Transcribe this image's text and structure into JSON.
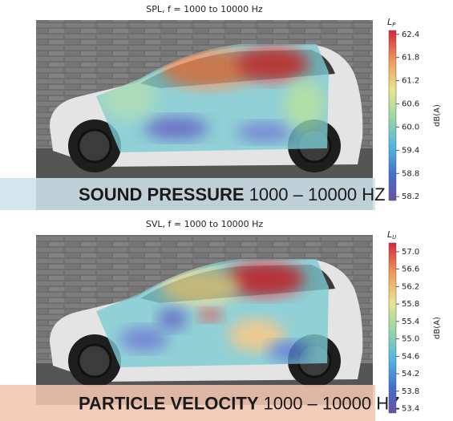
{
  "chart_data": [
    {
      "type": "heatmap",
      "title": "SPL, f = 1000 to 10000 Hz",
      "colorbar": {
        "symbol": "L",
        "subscript": "P",
        "label": "dB(A)",
        "lim": [
          58.1,
          62.5
        ],
        "ticks": [
          62.4,
          61.8,
          61.2,
          60.6,
          {
            "value": 60,
            "label": "60.0"
          },
          59.4,
          58.8,
          58.2
        ]
      },
      "banner_bold": "SOUND PRESSURE",
      "banner_rest": "1000 – 10000 HZ"
    },
    {
      "type": "heatmap",
      "title": "SVL, f = 1000 to 10000 Hz",
      "colorbar": {
        "symbol": "L",
        "subscript": "U",
        "label": "dB(A)",
        "lim": [
          53.3,
          57.2
        ],
        "ticks": [
          {
            "value": 57,
            "label": "57.0"
          },
          56.6,
          56.2,
          55.8,
          55.4,
          {
            "value": 55,
            "label": "55.0"
          },
          54.6,
          54.2,
          53.8,
          53.4
        ]
      },
      "banner_bold": "PARTICLE VELOCITY",
      "banner_rest": "1000 – 10000 HZ"
    }
  ]
}
